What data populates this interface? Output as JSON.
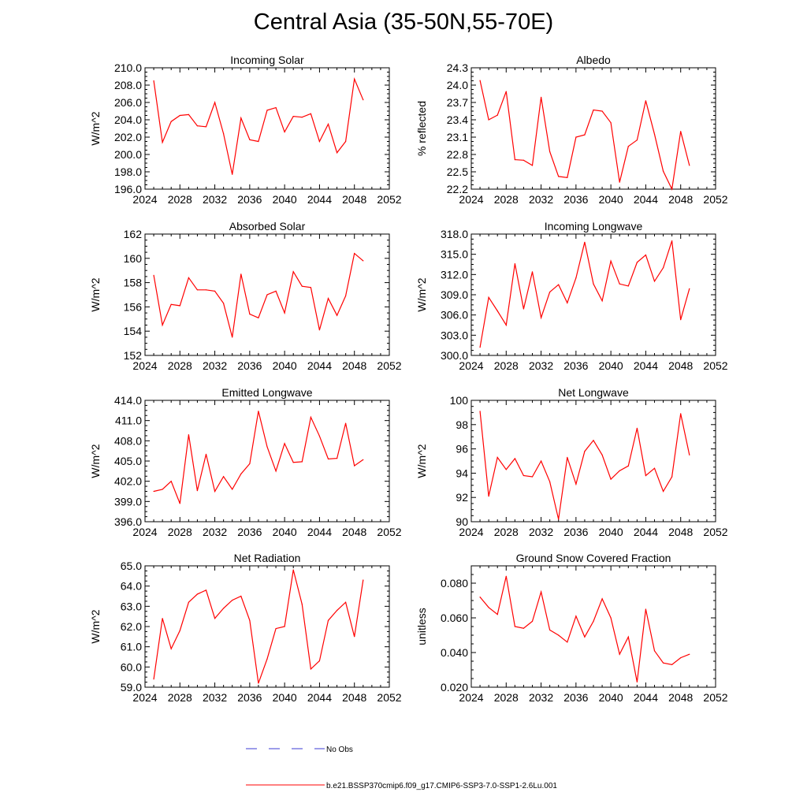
{
  "figure": {
    "title": "Central Asia (35-50N,55-70E)",
    "legend": [
      {
        "label": "No Obs",
        "color": "#3b3bd6",
        "dash": "dashed"
      },
      {
        "label": "b.e21.BSSP370cmip6.f09_g17.CMIP6-SSP3-7.0-SSP1-2.6Lu.001",
        "color": "#ff0000",
        "dash": "solid"
      }
    ]
  },
  "chart_data": [
    {
      "type": "line",
      "title": "Incoming Solar",
      "ylabel": "W/m^2",
      "xlim": [
        2024,
        2052
      ],
      "ylim": [
        196,
        210
      ],
      "xticks": [
        2024,
        2028,
        2032,
        2036,
        2040,
        2044,
        2048,
        2052
      ],
      "yticks": [
        "196.0",
        "198.0",
        "200.0",
        "202.0",
        "204.0",
        "206.0",
        "208.0",
        "210.0"
      ],
      "x": [
        2025,
        2026,
        2027,
        2028,
        2029,
        2030,
        2031,
        2032,
        2033,
        2034,
        2035,
        2036,
        2037,
        2038,
        2039,
        2040,
        2041,
        2042,
        2043,
        2044,
        2045,
        2046,
        2047,
        2048,
        2049
      ],
      "series": [
        {
          "values": [
            208.5,
            201.4,
            203.8,
            204.5,
            204.6,
            203.3,
            203.2,
            206.0,
            202.4,
            197.7,
            204.2,
            201.7,
            201.5,
            205.1,
            205.4,
            202.6,
            204.4,
            204.3,
            204.7,
            201.5,
            203.5,
            200.2,
            201.5,
            208.7,
            206.3
          ],
          "color": "#ff0000"
        }
      ]
    },
    {
      "type": "line",
      "title": "Albedo",
      "ylabel": "% reflected",
      "xlim": [
        2024,
        2052
      ],
      "ylim": [
        22.2,
        24.3
      ],
      "xticks": [
        2024,
        2028,
        2032,
        2036,
        2040,
        2044,
        2048,
        2052
      ],
      "yticks": [
        "22.2",
        "22.5",
        "22.8",
        "23.1",
        "23.4",
        "23.7",
        "24.0",
        "24.3"
      ],
      "x": [
        2025,
        2026,
        2027,
        2028,
        2029,
        2030,
        2031,
        2032,
        2033,
        2034,
        2035,
        2036,
        2037,
        2038,
        2039,
        2040,
        2041,
        2042,
        2043,
        2044,
        2045,
        2046,
        2047,
        2048,
        2049
      ],
      "series": [
        {
          "values": [
            24.08,
            23.4,
            23.48,
            23.89,
            22.71,
            22.7,
            22.61,
            23.79,
            22.85,
            22.42,
            22.4,
            23.1,
            23.14,
            23.57,
            23.55,
            23.35,
            22.32,
            22.94,
            23.05,
            23.73,
            23.15,
            22.51,
            22.2,
            23.2,
            22.61
          ],
          "color": "#ff0000"
        }
      ]
    },
    {
      "type": "line",
      "title": "Absorbed Solar",
      "ylabel": "W/m^2",
      "xlim": [
        2024,
        2052
      ],
      "ylim": [
        152,
        162
      ],
      "xticks": [
        2024,
        2028,
        2032,
        2036,
        2040,
        2044,
        2048,
        2052
      ],
      "yticks": [
        "152",
        "154",
        "156",
        "158",
        "160",
        "162"
      ],
      "x": [
        2025,
        2026,
        2027,
        2028,
        2029,
        2030,
        2031,
        2032,
        2033,
        2034,
        2035,
        2036,
        2037,
        2038,
        2039,
        2040,
        2041,
        2042,
        2043,
        2044,
        2045,
        2046,
        2047,
        2048,
        2049
      ],
      "series": [
        {
          "values": [
            158.6,
            154.5,
            156.2,
            156.1,
            158.4,
            157.4,
            157.4,
            157.3,
            156.3,
            153.5,
            158.7,
            155.4,
            155.1,
            157.0,
            157.3,
            155.5,
            158.9,
            157.7,
            157.6,
            154.1,
            156.7,
            155.3,
            156.9,
            160.4,
            159.8
          ],
          "color": "#ff0000"
        }
      ]
    },
    {
      "type": "line",
      "title": "Incoming Longwave",
      "ylabel": "W/m^2",
      "xlim": [
        2024,
        2052
      ],
      "ylim": [
        300,
        318
      ],
      "xticks": [
        2024,
        2028,
        2032,
        2036,
        2040,
        2044,
        2048,
        2052
      ],
      "yticks": [
        "300.0",
        "303.0",
        "306.0",
        "309.0",
        "312.0",
        "315.0",
        "318.0"
      ],
      "x": [
        2025,
        2026,
        2027,
        2028,
        2029,
        2030,
        2031,
        2032,
        2033,
        2034,
        2035,
        2036,
        2037,
        2038,
        2039,
        2040,
        2041,
        2042,
        2043,
        2044,
        2045,
        2046,
        2047,
        2048,
        2049
      ],
      "series": [
        {
          "values": [
            301.2,
            308.6,
            306.6,
            304.5,
            313.6,
            306.9,
            312.4,
            305.6,
            309.4,
            310.5,
            307.8,
            311.5,
            316.8,
            310.6,
            308.1,
            314.0,
            310.6,
            310.3,
            313.8,
            314.9,
            311.0,
            313.0,
            317.0,
            305.3,
            309.9
          ],
          "color": "#ff0000"
        }
      ]
    },
    {
      "type": "line",
      "title": "Emitted Longwave",
      "ylabel": "W/m^2",
      "xlim": [
        2024,
        2052
      ],
      "ylim": [
        396,
        414
      ],
      "xticks": [
        2024,
        2028,
        2032,
        2036,
        2040,
        2044,
        2048,
        2052
      ],
      "yticks": [
        "396.0",
        "399.0",
        "402.0",
        "405.0",
        "408.0",
        "411.0",
        "414.0"
      ],
      "x": [
        2025,
        2026,
        2027,
        2028,
        2029,
        2030,
        2031,
        2032,
        2033,
        2034,
        2035,
        2036,
        2037,
        2038,
        2039,
        2040,
        2041,
        2042,
        2043,
        2044,
        2045,
        2046,
        2047,
        2048,
        2049
      ],
      "series": [
        {
          "values": [
            400.5,
            400.8,
            402.0,
            398.7,
            408.9,
            400.6,
            406.0,
            400.5,
            402.7,
            400.8,
            403.1,
            404.6,
            412.4,
            407.1,
            403.5,
            407.6,
            404.8,
            404.9,
            411.5,
            408.7,
            405.3,
            405.4,
            410.6,
            404.3,
            405.2
          ],
          "color": "#ff0000"
        }
      ]
    },
    {
      "type": "line",
      "title": "Net Longwave",
      "ylabel": "W/m^2",
      "xlim": [
        2024,
        2052
      ],
      "ylim": [
        90,
        100
      ],
      "xticks": [
        2024,
        2028,
        2032,
        2036,
        2040,
        2044,
        2048,
        2052
      ],
      "yticks": [
        "90",
        "92",
        "94",
        "96",
        "98",
        "100"
      ],
      "x": [
        2025,
        2026,
        2027,
        2028,
        2029,
        2030,
        2031,
        2032,
        2033,
        2034,
        2035,
        2036,
        2037,
        2038,
        2039,
        2040,
        2041,
        2042,
        2043,
        2044,
        2045,
        2046,
        2047,
        2048,
        2049
      ],
      "series": [
        {
          "values": [
            99.1,
            92.1,
            95.3,
            94.3,
            95.2,
            93.8,
            93.7,
            95.0,
            93.3,
            90.2,
            95.3,
            93.1,
            95.8,
            96.7,
            95.5,
            93.5,
            94.2,
            94.6,
            97.7,
            93.8,
            94.4,
            92.5,
            93.7,
            98.9,
            95.5
          ],
          "color": "#ff0000"
        }
      ]
    },
    {
      "type": "line",
      "title": "Net Radiation",
      "ylabel": "W/m^2",
      "xlim": [
        2024,
        2052
      ],
      "ylim": [
        59,
        65
      ],
      "xticks": [
        2024,
        2028,
        2032,
        2036,
        2040,
        2044,
        2048,
        2052
      ],
      "yticks": [
        "59.0",
        "60.0",
        "61.0",
        "62.0",
        "63.0",
        "64.0",
        "65.0"
      ],
      "x": [
        2025,
        2026,
        2027,
        2028,
        2029,
        2030,
        2031,
        2032,
        2033,
        2034,
        2035,
        2036,
        2037,
        2038,
        2039,
        2040,
        2041,
        2042,
        2043,
        2044,
        2045,
        2046,
        2047,
        2048,
        2049
      ],
      "series": [
        {
          "values": [
            59.4,
            62.4,
            60.9,
            61.8,
            63.2,
            63.6,
            63.8,
            62.4,
            62.9,
            63.3,
            63.5,
            62.3,
            59.2,
            60.4,
            61.9,
            62.0,
            64.8,
            63.1,
            59.9,
            60.3,
            62.3,
            62.8,
            63.2,
            61.5,
            64.3
          ],
          "color": "#ff0000"
        }
      ]
    },
    {
      "type": "line",
      "title": "Ground Snow Covered Fraction",
      "ylabel": "unitless",
      "xlim": [
        2024,
        2052
      ],
      "ylim": [
        0.02,
        0.09
      ],
      "xticks": [
        2024,
        2028,
        2032,
        2036,
        2040,
        2044,
        2048,
        2052
      ],
      "yticks": [
        "0.020",
        "0.040",
        "0.060",
        "0.080"
      ],
      "x": [
        2025,
        2026,
        2027,
        2028,
        2029,
        2030,
        2031,
        2032,
        2033,
        2034,
        2035,
        2036,
        2037,
        2038,
        2039,
        2040,
        2041,
        2042,
        2043,
        2044,
        2045,
        2046,
        2047,
        2048,
        2049
      ],
      "series": [
        {
          "values": [
            0.072,
            0.066,
            0.062,
            0.084,
            0.055,
            0.054,
            0.058,
            0.075,
            0.053,
            0.05,
            0.046,
            0.061,
            0.049,
            0.058,
            0.071,
            0.06,
            0.039,
            0.049,
            0.023,
            0.065,
            0.041,
            0.034,
            0.033,
            0.037,
            0.039
          ],
          "color": "#ff0000"
        }
      ]
    }
  ]
}
